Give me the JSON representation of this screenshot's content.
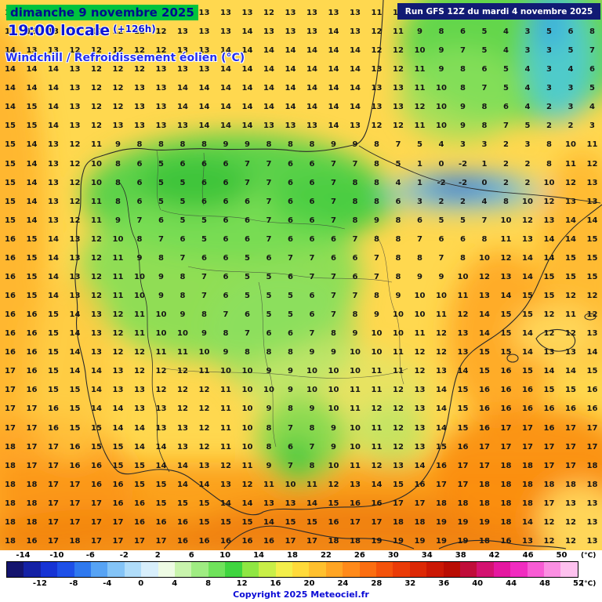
{
  "header": {
    "date_line": "dimanche 9 novembre 2025",
    "time_line": "19:00 locale",
    "offset": "(+126h)",
    "subtitle": "Windchill / Refroidissement éolien (°C)",
    "run_info": "Run GFS 12Z du mardi 4 novembre 2025"
  },
  "footer": {
    "copyright": "Copyright 2025 Meteociel.fr"
  },
  "scale": {
    "unit": "(°C)",
    "min": -16,
    "max": 52,
    "top_ticks": [
      -14,
      -10,
      -6,
      -2,
      2,
      6,
      10,
      14,
      18,
      22,
      26,
      30,
      34,
      38,
      42,
      46,
      50
    ],
    "bottom_ticks": [
      -12,
      -8,
      -4,
      0,
      4,
      8,
      12,
      16,
      20,
      24,
      28,
      32,
      36,
      40,
      44,
      48,
      52
    ],
    "colors": [
      "#14146e",
      "#1421a5",
      "#1633d4",
      "#1e50e8",
      "#2f79ef",
      "#57a3f4",
      "#84c4f7",
      "#b0ddfa",
      "#d8effc",
      "#eefbe4",
      "#c9f4ad",
      "#9fec82",
      "#6fe25b",
      "#3fd53f",
      "#8fe643",
      "#c9ef48",
      "#f4ef4b",
      "#ffda3a",
      "#ffc02e",
      "#ffa524",
      "#ff8a1a",
      "#fb6e11",
      "#f4530b",
      "#ea3b07",
      "#dc2805",
      "#cb1804",
      "#b90d03",
      "#c00d3a",
      "#d31270",
      "#e517a0",
      "#f12cc0",
      "#f85cd4",
      "#fb8fe2",
      "#fdc1ee"
    ]
  },
  "map_colors": {
    "base_yellow": "#ffd84f",
    "green": "#5bd14a",
    "blue_core": "#1b66d8",
    "orange": "#ffa726",
    "deep_orange": "#ef7a08"
  },
  "grid": {
    "values": [
      [
        13,
        13,
        13,
        14,
        13,
        12,
        12,
        13,
        13,
        13,
        13,
        13,
        12,
        13,
        13,
        13,
        13,
        11,
        11,
        9,
        8,
        8,
        5,
        4,
        4,
        6,
        7,
        7
      ],
      [
        13,
        13,
        13,
        13,
        12,
        12,
        12,
        12,
        13,
        13,
        13,
        14,
        13,
        13,
        13,
        14,
        13,
        12,
        11,
        9,
        8,
        6,
        5,
        4,
        3,
        5,
        6,
        8
      ],
      [
        14,
        13,
        13,
        12,
        12,
        12,
        12,
        12,
        13,
        13,
        14,
        14,
        14,
        14,
        14,
        14,
        14,
        12,
        12,
        10,
        9,
        7,
        5,
        4,
        3,
        3,
        5,
        7
      ],
      [
        14,
        14,
        14,
        13,
        12,
        12,
        12,
        13,
        13,
        13,
        14,
        14,
        14,
        14,
        14,
        14,
        14,
        13,
        12,
        11,
        9,
        8,
        6,
        5,
        4,
        3,
        4,
        6
      ],
      [
        14,
        14,
        14,
        13,
        12,
        12,
        13,
        13,
        14,
        14,
        14,
        14,
        14,
        14,
        14,
        14,
        14,
        13,
        13,
        11,
        10,
        8,
        7,
        5,
        4,
        3,
        3,
        5
      ],
      [
        14,
        15,
        14,
        13,
        12,
        12,
        13,
        13,
        14,
        14,
        14,
        14,
        14,
        14,
        14,
        14,
        14,
        13,
        13,
        12,
        10,
        9,
        8,
        6,
        4,
        2,
        3,
        4
      ],
      [
        15,
        15,
        14,
        13,
        12,
        13,
        13,
        13,
        13,
        14,
        14,
        14,
        13,
        13,
        13,
        14,
        13,
        12,
        12,
        11,
        10,
        9,
        8,
        7,
        5,
        2,
        2,
        3
      ],
      [
        15,
        14,
        13,
        12,
        11,
        9,
        8,
        8,
        8,
        8,
        9,
        9,
        8,
        8,
        8,
        9,
        9,
        8,
        7,
        5,
        4,
        3,
        3,
        2,
        3,
        8,
        10,
        11
      ],
      [
        15,
        14,
        13,
        12,
        10,
        8,
        6,
        5,
        6,
        6,
        6,
        7,
        7,
        6,
        6,
        7,
        7,
        8,
        5,
        1,
        0,
        -2,
        1,
        2,
        2,
        8,
        11,
        12
      ],
      [
        15,
        14,
        13,
        12,
        10,
        8,
        6,
        5,
        5,
        6,
        6,
        7,
        7,
        6,
        6,
        7,
        8,
        8,
        4,
        1,
        -2,
        -2,
        0,
        2,
        2,
        10,
        12,
        13
      ],
      [
        15,
        14,
        13,
        12,
        11,
        8,
        6,
        5,
        5,
        6,
        6,
        6,
        7,
        6,
        6,
        7,
        8,
        8,
        6,
        3,
        2,
        2,
        4,
        8,
        10,
        12,
        13,
        13
      ],
      [
        15,
        14,
        13,
        12,
        11,
        9,
        7,
        6,
        5,
        5,
        6,
        6,
        7,
        6,
        6,
        7,
        8,
        9,
        8,
        6,
        5,
        5,
        7,
        10,
        12,
        13,
        14,
        14
      ],
      [
        16,
        15,
        14,
        13,
        12,
        10,
        8,
        7,
        6,
        5,
        6,
        6,
        7,
        6,
        6,
        6,
        7,
        8,
        8,
        7,
        6,
        6,
        8,
        11,
        13,
        14,
        14,
        15
      ],
      [
        16,
        15,
        14,
        13,
        12,
        11,
        9,
        8,
        7,
        6,
        6,
        5,
        6,
        7,
        7,
        6,
        6,
        7,
        8,
        8,
        7,
        8,
        10,
        12,
        14,
        14,
        15,
        15
      ],
      [
        16,
        15,
        14,
        13,
        12,
        11,
        10,
        9,
        8,
        7,
        6,
        5,
        5,
        6,
        7,
        7,
        6,
        7,
        8,
        9,
        9,
        10,
        12,
        13,
        14,
        15,
        15,
        15
      ],
      [
        16,
        15,
        14,
        13,
        12,
        11,
        10,
        9,
        8,
        7,
        6,
        5,
        5,
        5,
        6,
        7,
        7,
        8,
        9,
        10,
        10,
        11,
        13,
        14,
        15,
        15,
        12,
        12
      ],
      [
        16,
        16,
        15,
        14,
        13,
        12,
        11,
        10,
        9,
        8,
        7,
        6,
        5,
        5,
        6,
        7,
        8,
        9,
        10,
        10,
        11,
        12,
        14,
        15,
        15,
        12,
        11,
        12
      ],
      [
        16,
        16,
        15,
        14,
        13,
        12,
        11,
        10,
        10,
        9,
        8,
        7,
        6,
        6,
        7,
        8,
        9,
        10,
        10,
        11,
        12,
        13,
        14,
        15,
        14,
        12,
        12,
        13
      ],
      [
        16,
        16,
        15,
        14,
        13,
        12,
        12,
        11,
        11,
        10,
        9,
        8,
        8,
        8,
        9,
        9,
        10,
        10,
        11,
        12,
        12,
        13,
        15,
        15,
        14,
        13,
        13,
        14
      ],
      [
        17,
        16,
        15,
        14,
        14,
        13,
        12,
        12,
        12,
        11,
        10,
        10,
        9,
        9,
        10,
        10,
        10,
        11,
        11,
        12,
        13,
        14,
        15,
        16,
        15,
        14,
        14,
        15
      ],
      [
        17,
        16,
        15,
        15,
        14,
        13,
        13,
        12,
        12,
        12,
        11,
        10,
        10,
        9,
        10,
        10,
        11,
        11,
        12,
        13,
        14,
        15,
        16,
        16,
        16,
        15,
        15,
        16
      ],
      [
        17,
        17,
        16,
        15,
        14,
        14,
        13,
        13,
        12,
        12,
        11,
        10,
        9,
        8,
        9,
        10,
        11,
        12,
        12,
        13,
        14,
        15,
        16,
        16,
        16,
        16,
        16,
        16
      ],
      [
        17,
        17,
        16,
        15,
        15,
        14,
        14,
        13,
        13,
        12,
        11,
        10,
        8,
        7,
        8,
        9,
        10,
        11,
        12,
        13,
        14,
        15,
        16,
        17,
        17,
        16,
        17,
        17
      ],
      [
        18,
        17,
        17,
        16,
        15,
        15,
        14,
        14,
        13,
        12,
        11,
        10,
        8,
        6,
        7,
        9,
        10,
        11,
        12,
        13,
        15,
        16,
        17,
        17,
        17,
        17,
        17,
        17
      ],
      [
        18,
        17,
        17,
        16,
        16,
        15,
        15,
        14,
        14,
        13,
        12,
        11,
        9,
        7,
        8,
        10,
        11,
        12,
        13,
        14,
        16,
        17,
        17,
        18,
        18,
        17,
        17,
        18
      ],
      [
        18,
        18,
        17,
        17,
        16,
        16,
        15,
        15,
        14,
        14,
        13,
        12,
        11,
        10,
        11,
        12,
        13,
        14,
        15,
        16,
        17,
        17,
        18,
        18,
        18,
        18,
        18,
        18
      ],
      [
        18,
        18,
        17,
        17,
        17,
        16,
        16,
        15,
        15,
        15,
        14,
        14,
        13,
        13,
        14,
        15,
        16,
        16,
        17,
        17,
        18,
        18,
        18,
        18,
        18,
        17,
        13,
        13
      ],
      [
        18,
        18,
        17,
        17,
        17,
        17,
        16,
        16,
        16,
        15,
        15,
        15,
        14,
        15,
        15,
        16,
        17,
        17,
        18,
        18,
        19,
        19,
        19,
        18,
        14,
        12,
        12,
        13
      ],
      [
        18,
        16,
        17,
        18,
        17,
        17,
        17,
        17,
        16,
        16,
        16,
        16,
        16,
        17,
        17,
        18,
        18,
        19,
        19,
        19,
        19,
        19,
        18,
        16,
        13,
        12,
        12,
        13
      ]
    ]
  }
}
